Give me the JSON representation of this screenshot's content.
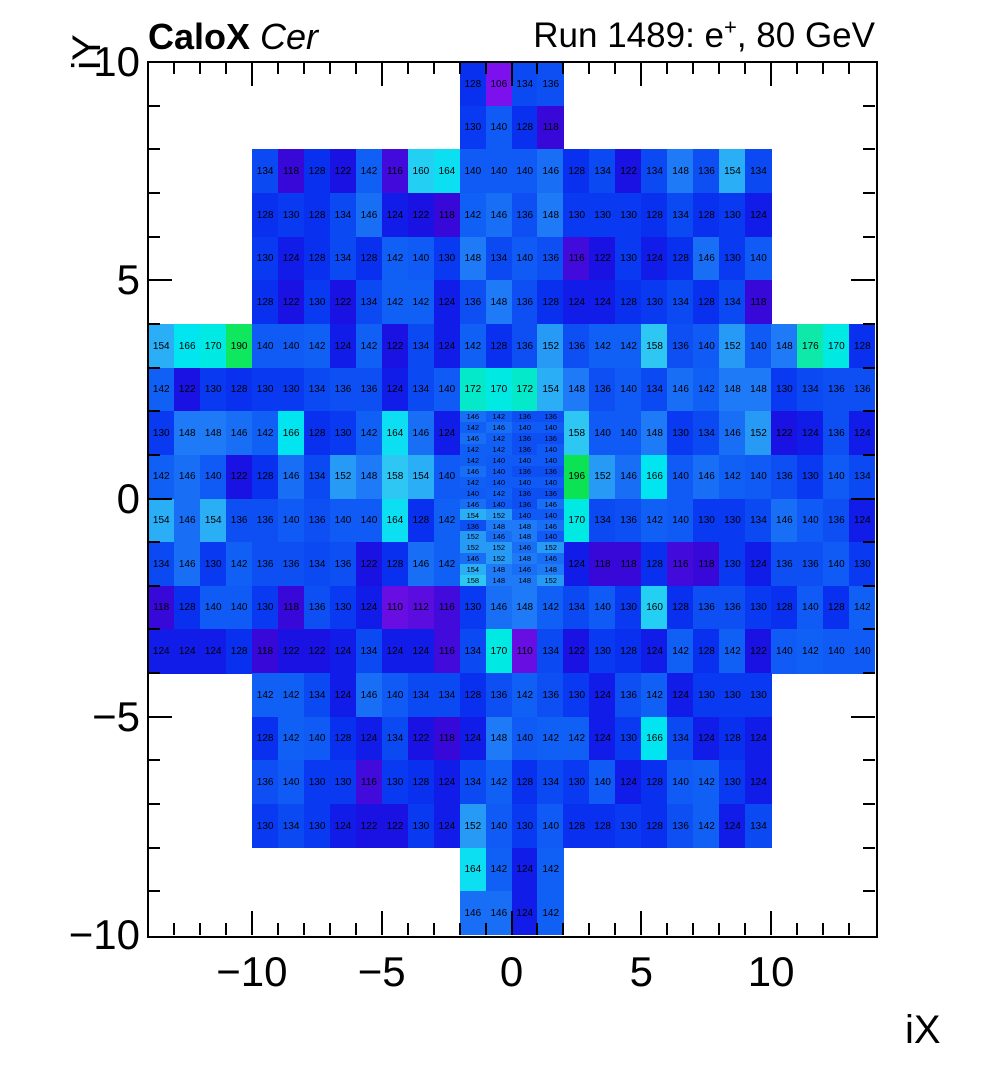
{
  "header": {
    "title_bold": "CaloX",
    "title_italic": "Cer",
    "run_prefix": "Run 1489: e",
    "run_sup": "+",
    "run_suffix": ", 80 GeV"
  },
  "axes": {
    "x_title": "iX",
    "y_title": "iY",
    "x_tick_values": [
      -10,
      -5,
      0,
      5,
      10
    ],
    "x_tick_labels": [
      "−10",
      "−5",
      "0",
      "5",
      "10"
    ],
    "y_tick_values": [
      10,
      5,
      0,
      -5,
      -10
    ],
    "y_tick_labels": [
      "10",
      "5",
      "0",
      "−5",
      "−10"
    ]
  },
  "chart_data": {
    "type": "heatmap",
    "title": "CaloX Cer",
    "subtitle": "Run 1489: e+, 80 GeV",
    "xlabel": "iX",
    "ylabel": "iY",
    "x_range": [
      -14,
      14
    ],
    "y_range": [
      -10,
      10
    ],
    "z_min": 106,
    "z_max": 196,
    "grid": false,
    "palette_stops": [
      [
        106,
        "#7d11ee"
      ],
      [
        110,
        "#680ee2"
      ],
      [
        114,
        "#4d0bde"
      ],
      [
        118,
        "#3808d9"
      ],
      [
        122,
        "#1a12e3"
      ],
      [
        126,
        "#0a26ec"
      ],
      [
        130,
        "#0939f1"
      ],
      [
        134,
        "#0b49f2"
      ],
      [
        138,
        "#0e55f4"
      ],
      [
        142,
        "#1160f5"
      ],
      [
        146,
        "#186ff6"
      ],
      [
        150,
        "#2385f6"
      ],
      [
        154,
        "#2aaef5"
      ],
      [
        158,
        "#2ec7f3"
      ],
      [
        162,
        "#17d9f4"
      ],
      [
        166,
        "#00e5f0"
      ],
      [
        170,
        "#00e9e2"
      ],
      [
        174,
        "#0ae9b4"
      ],
      [
        178,
        "#12e79c"
      ],
      [
        184,
        "#14e570"
      ],
      [
        190,
        "#0fe75e"
      ],
      [
        196,
        "#0be254"
      ]
    ],
    "coarse_rows": [
      {
        "y_top": 10,
        "segments": [
          {
            "x0": -2,
            "values": [
              128,
              106,
              134,
              136
            ]
          }
        ]
      },
      {
        "y_top": 9,
        "segments": [
          {
            "x0": -2,
            "values": [
              130,
              140,
              128,
              118
            ]
          }
        ]
      },
      {
        "y_top": 8,
        "segments": [
          {
            "x0": -10,
            "values": [
              134,
              118,
              128,
              122,
              142,
              116,
              160,
              164,
              140,
              140,
              140,
              146,
              128,
              134,
              122,
              134,
              148,
              136,
              154,
              134
            ]
          }
        ]
      },
      {
        "y_top": 7,
        "segments": [
          {
            "x0": -10,
            "values": [
              128,
              130,
              128,
              134,
              146,
              124,
              122,
              118,
              142,
              146,
              136,
              148,
              130,
              130,
              130,
              128,
              134,
              128,
              130,
              124
            ]
          }
        ]
      },
      {
        "y_top": 6,
        "segments": [
          {
            "x0": -10,
            "values": [
              130,
              124,
              128,
              134,
              128,
              142,
              140,
              130,
              148,
              134,
              140,
              136,
              116,
              122,
              130,
              124,
              128,
              146,
              130,
              140
            ]
          }
        ]
      },
      {
        "y_top": 5,
        "segments": [
          {
            "x0": -10,
            "values": [
              128,
              122,
              130,
              122,
              134,
              142,
              142,
              124,
              136,
              148,
              136,
              128,
              124,
              124,
              128,
              130,
              134,
              128,
              134,
              118
            ]
          }
        ]
      },
      {
        "y_top": 4,
        "segments": [
          {
            "x0": -14,
            "values": [
              154,
              166,
              170,
              190,
              140,
              140,
              142,
              124,
              142,
              122,
              134,
              124,
              142,
              128,
              136,
              152,
              136,
              142,
              142,
              158,
              136,
              140,
              152,
              140,
              148,
              176,
              170,
              128
            ]
          }
        ]
      },
      {
        "y_top": 3,
        "segments": [
          {
            "x0": -14,
            "values": [
              142,
              122,
              130,
              128,
              130,
              130,
              134,
              136,
              136,
              124,
              134,
              140,
              172,
              170,
              172,
              154,
              148,
              136,
              140,
              134,
              146,
              142,
              148,
              148,
              130,
              134,
              136,
              136
            ]
          }
        ]
      },
      {
        "y_top": 2,
        "segments": [
          {
            "x0": -14,
            "values": [
              130,
              148,
              148,
              146,
              142,
              166,
              128,
              130,
              142,
              164,
              146,
              124
            ]
          },
          {
            "x0": 2,
            "values": [
              158,
              140,
              140,
              148,
              130,
              134,
              146,
              152,
              122,
              124,
              136,
              124
            ]
          }
        ]
      },
      {
        "y_top": 1,
        "segments": [
          {
            "x0": -14,
            "values": [
              142,
              146,
              140,
              122,
              128,
              146,
              134,
              152,
              148,
              158,
              154,
              140
            ]
          },
          {
            "x0": 2,
            "values": [
              196,
              152,
              146,
              166,
              140,
              146,
              142,
              140,
              136,
              130,
              140,
              134
            ]
          }
        ]
      },
      {
        "y_top": 0,
        "segments": [
          {
            "x0": -14,
            "values": [
              154,
              146,
              154,
              136,
              136,
              140,
              136,
              140,
              140,
              164,
              128,
              142
            ]
          },
          {
            "x0": 2,
            "values": [
              170,
              134,
              136,
              142,
              140,
              130,
              130,
              134,
              146,
              140,
              136,
              124
            ]
          }
        ]
      },
      {
        "y_top": -1,
        "segments": [
          {
            "x0": -14,
            "values": [
              134,
              146,
              130,
              142,
              136,
              136,
              134,
              136,
              122,
              128,
              146,
              142
            ]
          },
          {
            "x0": 2,
            "values": [
              124,
              118,
              118,
              128,
              116,
              118,
              130,
              124,
              136,
              136,
              140,
              130
            ]
          }
        ]
      },
      {
        "y_top": -2,
        "segments": [
          {
            "x0": -14,
            "values": [
              118,
              128,
              140,
              140,
              130,
              118,
              136,
              130,
              124,
              110,
              112,
              116,
              130,
              146,
              148,
              142,
              134,
              140,
              130,
              160,
              128,
              136,
              136,
              130,
              128,
              140,
              128,
              142
            ]
          }
        ]
      },
      {
        "y_top": -3,
        "segments": [
          {
            "x0": -14,
            "values": [
              124,
              124,
              124,
              128,
              118,
              122,
              122,
              124,
              134,
              124,
              124,
              116,
              134,
              170,
              110,
              134,
              122,
              130,
              128,
              124,
              142,
              128,
              142,
              122,
              140,
              142,
              140,
              140
            ]
          }
        ]
      },
      {
        "y_top": -4,
        "segments": [
          {
            "x0": -10,
            "values": [
              142,
              142,
              134,
              124,
              146,
              140,
              134,
              134,
              128,
              136,
              142,
              136,
              130,
              124,
              136,
              142,
              124,
              130,
              130,
              130
            ]
          }
        ]
      },
      {
        "y_top": -5,
        "segments": [
          {
            "x0": -10,
            "values": [
              128,
              142,
              140,
              128,
              124,
              134,
              122,
              118,
              124,
              148,
              140,
              142,
              142,
              124,
              130,
              166,
              134,
              124,
              128,
              124
            ]
          }
        ]
      },
      {
        "y_top": -6,
        "segments": [
          {
            "x0": -10,
            "values": [
              136,
              140,
              130,
              130,
              116,
              130,
              128,
              124,
              134,
              142,
              128,
              134,
              130,
              140,
              124,
              128,
              140,
              142,
              130,
              124
            ]
          }
        ]
      },
      {
        "y_top": -7,
        "segments": [
          {
            "x0": -10,
            "values": [
              130,
              134,
              130,
              124,
              122,
              122,
              130,
              124,
              152,
              140,
              130,
              140,
              128,
              128,
              130,
              128,
              136,
              142,
              124,
              134
            ]
          }
        ]
      },
      {
        "y_top": -8,
        "segments": [
          {
            "x0": -2,
            "values": [
              164,
              142,
              124,
              142
            ]
          }
        ]
      },
      {
        "y_top": -9,
        "segments": [
          {
            "x0": -2,
            "values": [
              146,
              146,
              124,
              142
            ]
          }
        ]
      }
    ],
    "fine_block": {
      "x0": -2,
      "y_top": 2,
      "cols": 4,
      "sub_row_height": 0.25,
      "rows": [
        [
          146,
          142,
          136,
          136
        ],
        [
          142,
          146,
          140,
          140
        ],
        [
          146,
          142,
          136,
          136
        ],
        [
          142,
          142,
          136,
          140
        ],
        [
          142,
          140,
          140,
          140
        ],
        [
          146,
          140,
          136,
          136
        ],
        [
          142,
          140,
          140,
          140
        ],
        [
          140,
          142,
          136,
          136
        ],
        [
          146,
          140,
          136,
          146
        ],
        [
          154,
          152,
          140,
          140
        ],
        [
          136,
          148,
          148,
          146
        ],
        [
          152,
          146,
          148,
          140
        ],
        [
          152,
          152,
          146,
          152
        ],
        [
          146,
          152,
          148,
          146
        ],
        [
          154,
          148,
          146,
          148
        ],
        [
          158,
          148,
          148,
          152
        ]
      ]
    }
  }
}
